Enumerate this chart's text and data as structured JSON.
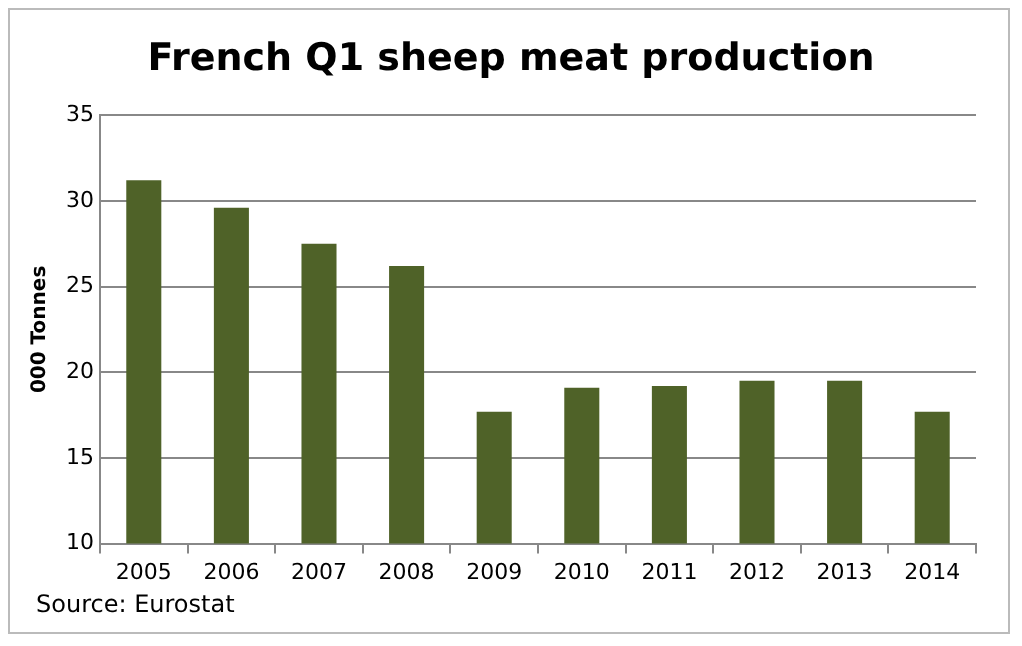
{
  "chart_data": {
    "type": "bar",
    "title": "French Q1 sheep meat production",
    "ylabel": "000 Tonnes",
    "categories": [
      "2005",
      "2006",
      "2007",
      "2008",
      "2009",
      "2010",
      "2011",
      "2012",
      "2013",
      "2014"
    ],
    "values": [
      31.2,
      29.6,
      27.5,
      26.2,
      17.7,
      19.1,
      19.2,
      19.5,
      19.5,
      17.7
    ],
    "color": "#4f6228",
    "ylim": [
      10,
      35
    ],
    "yticks": [
      10,
      15,
      20,
      25,
      30,
      35
    ],
    "grid": "y",
    "legend": false,
    "annotations": [
      "Source: Eurostat"
    ]
  }
}
